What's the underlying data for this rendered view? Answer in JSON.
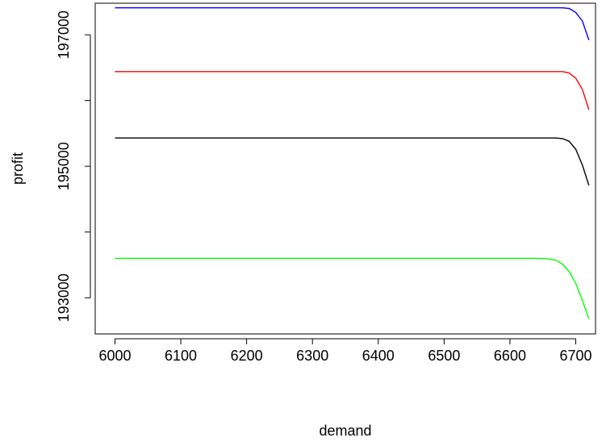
{
  "chart_data": {
    "type": "line",
    "title": "",
    "xlabel": "demand",
    "ylabel": "profit",
    "xlim": [
      5970,
      6730
    ],
    "ylim": [
      192450,
      197480
    ],
    "x_ticks": [
      6000,
      6100,
      6200,
      6300,
      6400,
      6500,
      6600,
      6700
    ],
    "y_ticks": [
      193000,
      194000,
      195000,
      196000,
      197000
    ],
    "y_tick_labels": [
      "193000",
      "",
      "195000",
      "",
      "197000"
    ],
    "x_tick_labels": [
      "6000",
      "6100",
      "6200",
      "6300",
      "6400",
      "6500",
      "6600",
      "6700"
    ],
    "grid": false,
    "series": [
      {
        "color": "#0000ff",
        "x": [
          6000,
          6100,
          6200,
          6300,
          6400,
          6500,
          6600,
          6680,
          6690,
          6700,
          6710,
          6720
        ],
        "values": [
          197410,
          197410,
          197410,
          197410,
          197410,
          197410,
          197410,
          197410,
          197400,
          197340,
          197210,
          196920
        ]
      },
      {
        "color": "#ff0000",
        "x": [
          6000,
          6100,
          6200,
          6300,
          6400,
          6500,
          6600,
          6680,
          6690,
          6700,
          6710,
          6720
        ],
        "values": [
          196440,
          196440,
          196440,
          196440,
          196440,
          196440,
          196440,
          196440,
          196420,
          196340,
          196170,
          195860
        ]
      },
      {
        "color": "#000000",
        "x": [
          6000,
          6100,
          6200,
          6300,
          6400,
          6500,
          6600,
          6670,
          6680,
          6690,
          6700,
          6710,
          6720
        ],
        "values": [
          195430,
          195430,
          195430,
          195430,
          195430,
          195430,
          195430,
          195430,
          195420,
          195380,
          195260,
          195020,
          194710
        ]
      },
      {
        "color": "#00ff00",
        "x": [
          6000,
          6100,
          6200,
          6300,
          6400,
          6500,
          6600,
          6640,
          6660,
          6670,
          6680,
          6690,
          6700,
          6710,
          6720
        ],
        "values": [
          193600,
          193600,
          193600,
          193600,
          193600,
          193600,
          193600,
          193600,
          193590,
          193570,
          193510,
          193400,
          193220,
          192960,
          192680
        ]
      }
    ]
  }
}
